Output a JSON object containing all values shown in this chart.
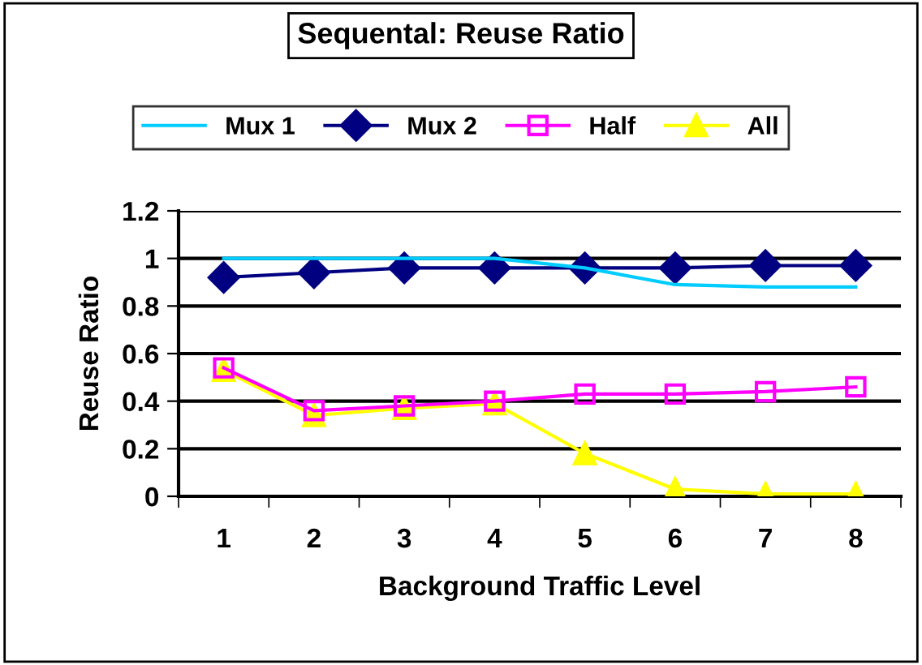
{
  "chart_data": {
    "type": "line",
    "title": "Sequental: Reuse Ratio",
    "xlabel": "Background Traffic Level",
    "ylabel": "Reuse Ratio",
    "categories": [
      "1",
      "2",
      "3",
      "4",
      "5",
      "6",
      "7",
      "8"
    ],
    "series": [
      {
        "name": "Mux 1",
        "color": "#00ccff",
        "marker": "none",
        "values": [
          1.0,
          1.0,
          1.0,
          1.0,
          0.96,
          0.89,
          0.88,
          0.88
        ]
      },
      {
        "name": "Mux 2",
        "color": "#000080",
        "marker": "diamond",
        "values": [
          0.92,
          0.94,
          0.96,
          0.96,
          0.96,
          0.96,
          0.97,
          0.97
        ]
      },
      {
        "name": "Half",
        "color": "#ff00ff",
        "marker": "square",
        "values": [
          0.54,
          0.36,
          0.38,
          0.4,
          0.43,
          0.43,
          0.44,
          0.46
        ]
      },
      {
        "name": "All",
        "color": "#ffff00",
        "marker": "triangle",
        "values": [
          0.53,
          0.34,
          0.37,
          0.39,
          0.18,
          0.03,
          0.01,
          0.01
        ]
      }
    ],
    "ylim": [
      0,
      1.2
    ],
    "yticks": [
      0,
      0.2,
      0.4,
      0.6,
      0.8,
      1,
      1.2
    ],
    "grid": "y",
    "legend": "top"
  }
}
